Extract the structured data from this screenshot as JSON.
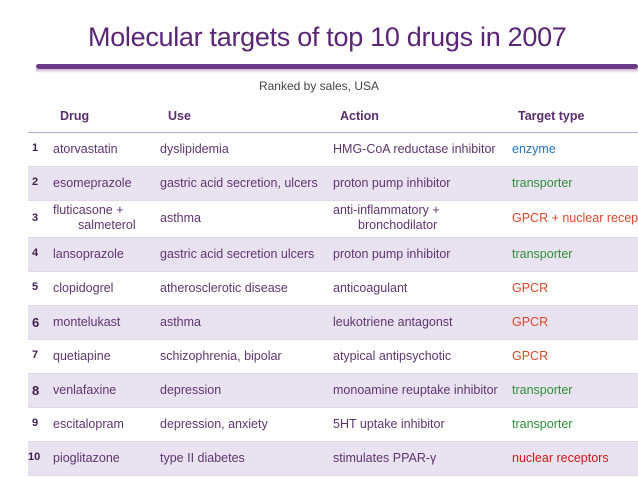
{
  "title": "Molecular targets of top 10 drugs in 2007",
  "subtitle": "Ranked by sales, USA",
  "headers": {
    "drug": "Drug",
    "use": "Use",
    "action": "Action",
    "target": "Target type"
  },
  "rows": [
    {
      "num": "1",
      "drug": "atorvastatin",
      "use": "dyslipidemia",
      "action": "HMG-CoA reductase inhibitor",
      "target": "enzyme",
      "target_color": "#2a6fb0"
    },
    {
      "num": "2",
      "drug": "esomeprazole",
      "use": "gastric acid secretion, ulcers",
      "action": "proton pump inhibitor",
      "target": "transporter",
      "target_color": "#2f8f3a"
    },
    {
      "num": "3",
      "drug_line1": "fluticasone +",
      "drug_line2": "salmeterol",
      "use": "asthma",
      "action_line1": "anti-inflammatory +",
      "action_line2": "bronchodilator",
      "target": "GPCR + nuclear receptor",
      "target_color": "#d9482b"
    },
    {
      "num": "4",
      "drug": "lansoprazole",
      "use": "gastric acid secretion ulcers",
      "action": "proton pump inhibitor",
      "target": "transporter",
      "target_color": "#2f8f3a"
    },
    {
      "num": "5",
      "drug": "clopidogrel",
      "use": "atherosclerotic disease",
      "action": "anticoagulant",
      "target": "GPCR",
      "target_color": "#d9482b"
    },
    {
      "num": "6",
      "drug": "montelukast",
      "use": "asthma",
      "action": "leukotriene antagonst",
      "target": "GPCR",
      "target_color": "#d9482b"
    },
    {
      "num": "7",
      "drug": "quetiapine",
      "use": "schizophrenia, bipolar",
      "action": "atypical antipsychotic",
      "target": "GPCR",
      "target_color": "#d9482b"
    },
    {
      "num": "8",
      "drug": "venlafaxine",
      "use": "depression",
      "action": "monoamine reuptake inhibitor",
      "target": "transporter",
      "target_color": "#2f8f3a"
    },
    {
      "num": "9",
      "drug": "escitalopram",
      "use": "depression, anxiety",
      "action": "5HT uptake inhibitor",
      "target": "transporter",
      "target_color": "#2f8f3a"
    },
    {
      "num": "10",
      "drug": "pioglitazone",
      "use": "type II diabetes",
      "action": "stimulates PPAR-γ",
      "target": "nuclear receptors",
      "target_color": "#d01818"
    }
  ]
}
